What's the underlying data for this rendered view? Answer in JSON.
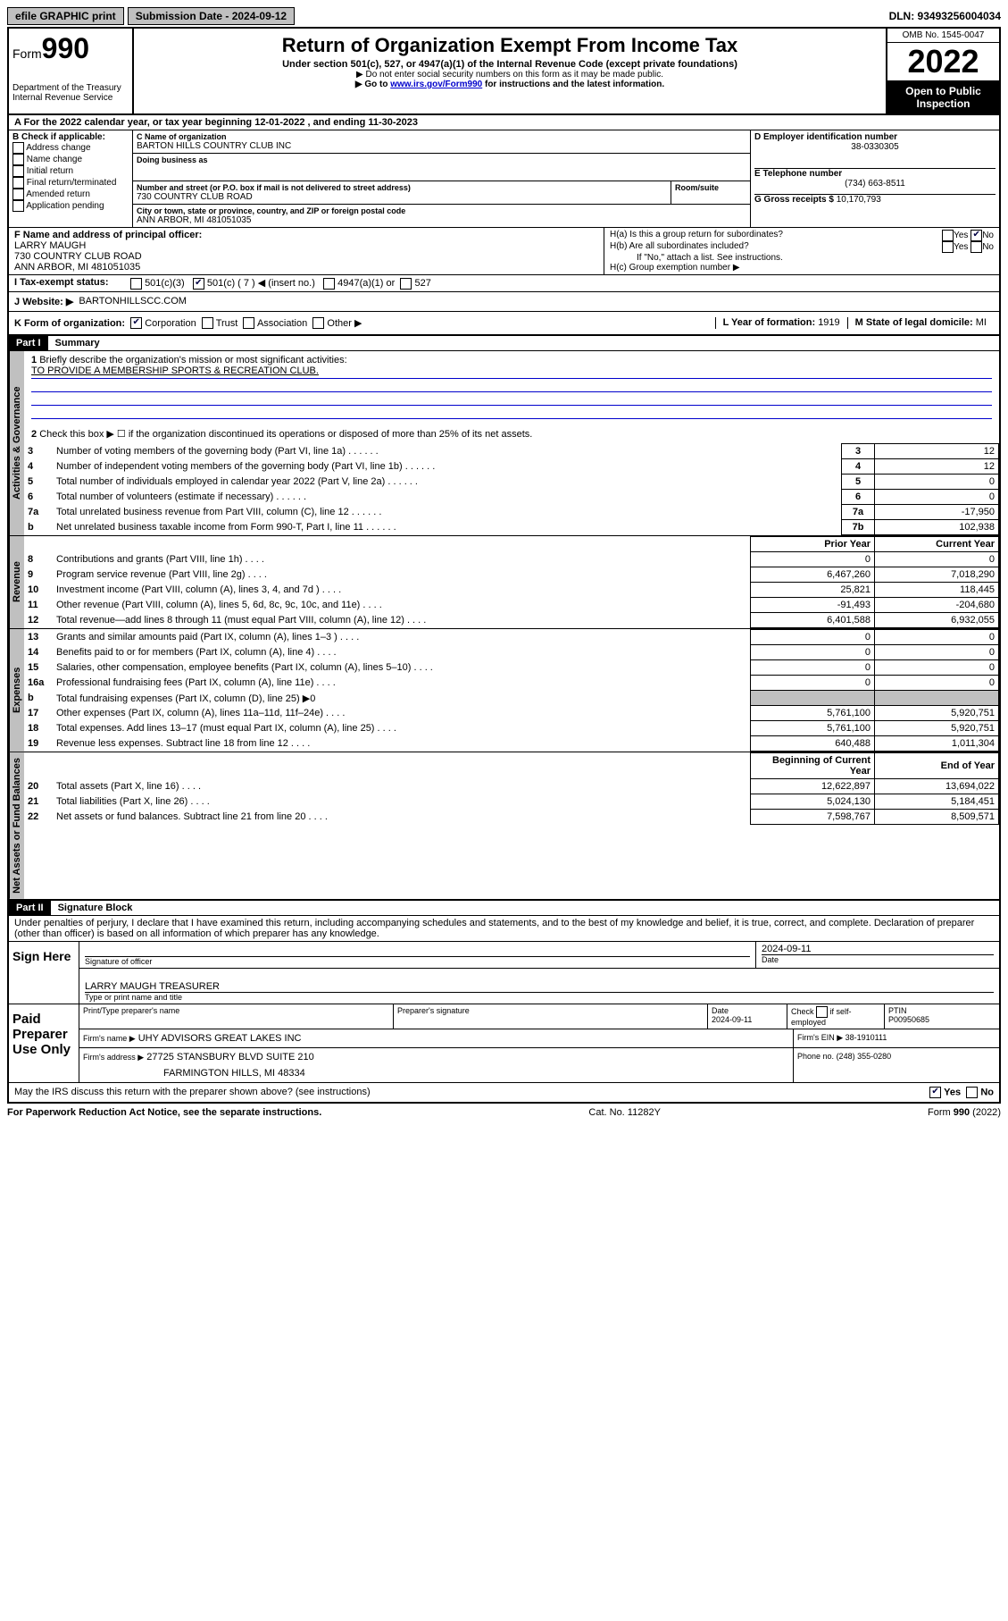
{
  "topbar": {
    "efile": "efile GRAPHIC print",
    "submission": "Submission Date - 2024-09-12",
    "dln": "DLN: 93493256004034"
  },
  "header": {
    "form_label": "Form",
    "form_number": "990",
    "dept": "Department of the Treasury",
    "irs": "Internal Revenue Service",
    "title": "Return of Organization Exempt From Income Tax",
    "subtitle": "Under section 501(c), 527, or 4947(a)(1) of the Internal Revenue Code (except private foundations)",
    "note1": "▶ Do not enter social security numbers on this form as it may be made public.",
    "note2_pre": "▶ Go to ",
    "note2_link": "www.irs.gov/Form990",
    "note2_post": " for instructions and the latest information.",
    "omb": "OMB No. 1545-0047",
    "year": "2022",
    "open": "Open to Public Inspection"
  },
  "periodA": "For the 2022 calendar year, or tax year beginning 12-01-2022    , and ending 11-30-2023",
  "sectionB": {
    "label": "B Check if applicable:",
    "items": [
      "Address change",
      "Name change",
      "Initial return",
      "Final return/terminated",
      "Amended return",
      "Application pending"
    ]
  },
  "sectionC": {
    "name_label": "C Name of organization",
    "name": "BARTON HILLS COUNTRY CLUB INC",
    "dba_label": "Doing business as",
    "addr_label": "Number and street (or P.O. box if mail is not delivered to street address)",
    "room_label": "Room/suite",
    "addr": "730 COUNTRY CLUB ROAD",
    "city_label": "City or town, state or province, country, and ZIP or foreign postal code",
    "city": "ANN ARBOR, MI  481051035"
  },
  "sectionD": {
    "label": "D Employer identification number",
    "value": "38-0330305"
  },
  "sectionE": {
    "label": "E Telephone number",
    "value": "(734) 663-8511"
  },
  "sectionG": {
    "label": "G Gross receipts $",
    "value": "10,170,793"
  },
  "sectionF": {
    "label": "F Name and address of principal officer:",
    "name": "LARRY MAUGH",
    "addr1": "730 COUNTRY CLUB ROAD",
    "addr2": "ANN ARBOR, MI  481051035"
  },
  "sectionH": {
    "a": "H(a)  Is this a group return for subordinates?",
    "b": "H(b)  Are all subordinates included?",
    "b_note": "If \"No,\" attach a list. See instructions.",
    "c": "H(c)  Group exemption number ▶"
  },
  "sectionI": {
    "label": "Tax-exempt status:",
    "opts": [
      "501(c)(3)",
      "501(c) ( 7 ) ◀ (insert no.)",
      "4947(a)(1) or",
      "527"
    ]
  },
  "sectionJ": {
    "label": "Website: ▶",
    "value": "BARTONHILLSCC.COM"
  },
  "sectionK": {
    "label": "K Form of organization:",
    "opts": [
      "Corporation",
      "Trust",
      "Association",
      "Other ▶"
    ]
  },
  "sectionL": {
    "label": "L Year of formation:",
    "value": "1919"
  },
  "sectionM": {
    "label": "M State of legal domicile:",
    "value": "MI"
  },
  "part1": {
    "header": "Part I",
    "title": "Summary",
    "line1": "Briefly describe the organization's mission or most significant activities:",
    "mission": "TO PROVIDE A MEMBERSHIP SPORTS & RECREATION CLUB.",
    "line2": "Check this box ▶ ☐  if the organization discontinued its operations or disposed of more than 25% of its net assets.",
    "tabs": {
      "gov": "Activities & Governance",
      "rev": "Revenue",
      "exp": "Expenses",
      "net": "Net Assets or Fund Balances"
    },
    "rows_gov": [
      {
        "n": "3",
        "d": "Number of voting members of the governing body (Part VI, line 1a)",
        "b": "3",
        "v": "12"
      },
      {
        "n": "4",
        "d": "Number of independent voting members of the governing body (Part VI, line 1b)",
        "b": "4",
        "v": "12"
      },
      {
        "n": "5",
        "d": "Total number of individuals employed in calendar year 2022 (Part V, line 2a)",
        "b": "5",
        "v": "0"
      },
      {
        "n": "6",
        "d": "Total number of volunteers (estimate if necessary)",
        "b": "6",
        "v": "0"
      },
      {
        "n": "7a",
        "d": "Total unrelated business revenue from Part VIII, column (C), line 12",
        "b": "7a",
        "v": "-17,950"
      },
      {
        "n": "b",
        "d": "Net unrelated business taxable income from Form 990-T, Part I, line 11",
        "b": "7b",
        "v": "102,938"
      }
    ],
    "col_headers": {
      "prior": "Prior Year",
      "current": "Current Year"
    },
    "rows_rev": [
      {
        "n": "8",
        "d": "Contributions and grants (Part VIII, line 1h)",
        "p": "0",
        "c": "0"
      },
      {
        "n": "9",
        "d": "Program service revenue (Part VIII, line 2g)",
        "p": "6,467,260",
        "c": "7,018,290"
      },
      {
        "n": "10",
        "d": "Investment income (Part VIII, column (A), lines 3, 4, and 7d )",
        "p": "25,821",
        "c": "118,445"
      },
      {
        "n": "11",
        "d": "Other revenue (Part VIII, column (A), lines 5, 6d, 8c, 9c, 10c, and 11e)",
        "p": "-91,493",
        "c": "-204,680"
      },
      {
        "n": "12",
        "d": "Total revenue—add lines 8 through 11 (must equal Part VIII, column (A), line 12)",
        "p": "6,401,588",
        "c": "6,932,055"
      }
    ],
    "rows_exp": [
      {
        "n": "13",
        "d": "Grants and similar amounts paid (Part IX, column (A), lines 1–3 )",
        "p": "0",
        "c": "0"
      },
      {
        "n": "14",
        "d": "Benefits paid to or for members (Part IX, column (A), line 4)",
        "p": "0",
        "c": "0"
      },
      {
        "n": "15",
        "d": "Salaries, other compensation, employee benefits (Part IX, column (A), lines 5–10)",
        "p": "0",
        "c": "0"
      },
      {
        "n": "16a",
        "d": "Professional fundraising fees (Part IX, column (A), line 11e)",
        "p": "0",
        "c": "0"
      }
    ],
    "line16b": "Total fundraising expenses (Part IX, column (D), line 25) ▶0",
    "rows_exp2": [
      {
        "n": "17",
        "d": "Other expenses (Part IX, column (A), lines 11a–11d, 11f–24e)",
        "p": "5,761,100",
        "c": "5,920,751"
      },
      {
        "n": "18",
        "d": "Total expenses. Add lines 13–17 (must equal Part IX, column (A), line 25)",
        "p": "5,761,100",
        "c": "5,920,751"
      },
      {
        "n": "19",
        "d": "Revenue less expenses. Subtract line 18 from line 12",
        "p": "640,488",
        "c": "1,011,304"
      }
    ],
    "col_headers2": {
      "begin": "Beginning of Current Year",
      "end": "End of Year"
    },
    "rows_net": [
      {
        "n": "20",
        "d": "Total assets (Part X, line 16)",
        "p": "12,622,897",
        "c": "13,694,022"
      },
      {
        "n": "21",
        "d": "Total liabilities (Part X, line 26)",
        "p": "5,024,130",
        "c": "5,184,451"
      },
      {
        "n": "22",
        "d": "Net assets or fund balances. Subtract line 21 from line 20",
        "p": "7,598,767",
        "c": "8,509,571"
      }
    ]
  },
  "part2": {
    "header": "Part II",
    "title": "Signature Block",
    "declaration": "Under penalties of perjury, I declare that I have examined this return, including accompanying schedules and statements, and to the best of my knowledge and belief, it is true, correct, and complete. Declaration of preparer (other than officer) is based on all information of which preparer has any knowledge."
  },
  "sign": {
    "here": "Sign Here",
    "sig_label": "Signature of officer",
    "date_label": "Date",
    "date": "2024-09-11",
    "name": "LARRY MAUGH  TREASURER",
    "name_label": "Type or print name and title"
  },
  "preparer": {
    "label": "Paid Preparer Use Only",
    "h1": "Print/Type preparer's name",
    "h2": "Preparer's signature",
    "h3": "Date",
    "date": "2024-09-11",
    "h4_pre": "Check",
    "h4_post": "if self-employed",
    "h5": "PTIN",
    "ptin": "P00950685",
    "firm_name_label": "Firm's name    ▶",
    "firm_name": "UHY ADVISORS GREAT LAKES INC",
    "firm_ein_label": "Firm's EIN ▶",
    "firm_ein": "38-1910111",
    "firm_addr_label": "Firm's address ▶",
    "firm_addr1": "27725 STANSBURY BLVD SUITE 210",
    "firm_addr2": "FARMINGTON HILLS, MI  48334",
    "phone_label": "Phone no.",
    "phone": "(248) 355-0280"
  },
  "discuss": "May the IRS discuss this return with the preparer shown above? (see instructions)",
  "footer": {
    "left": "For Paperwork Reduction Act Notice, see the separate instructions.",
    "mid": "Cat. No. 11282Y",
    "right": "Form 990 (2022)"
  },
  "ui": {
    "yes": "Yes",
    "no": "No"
  }
}
